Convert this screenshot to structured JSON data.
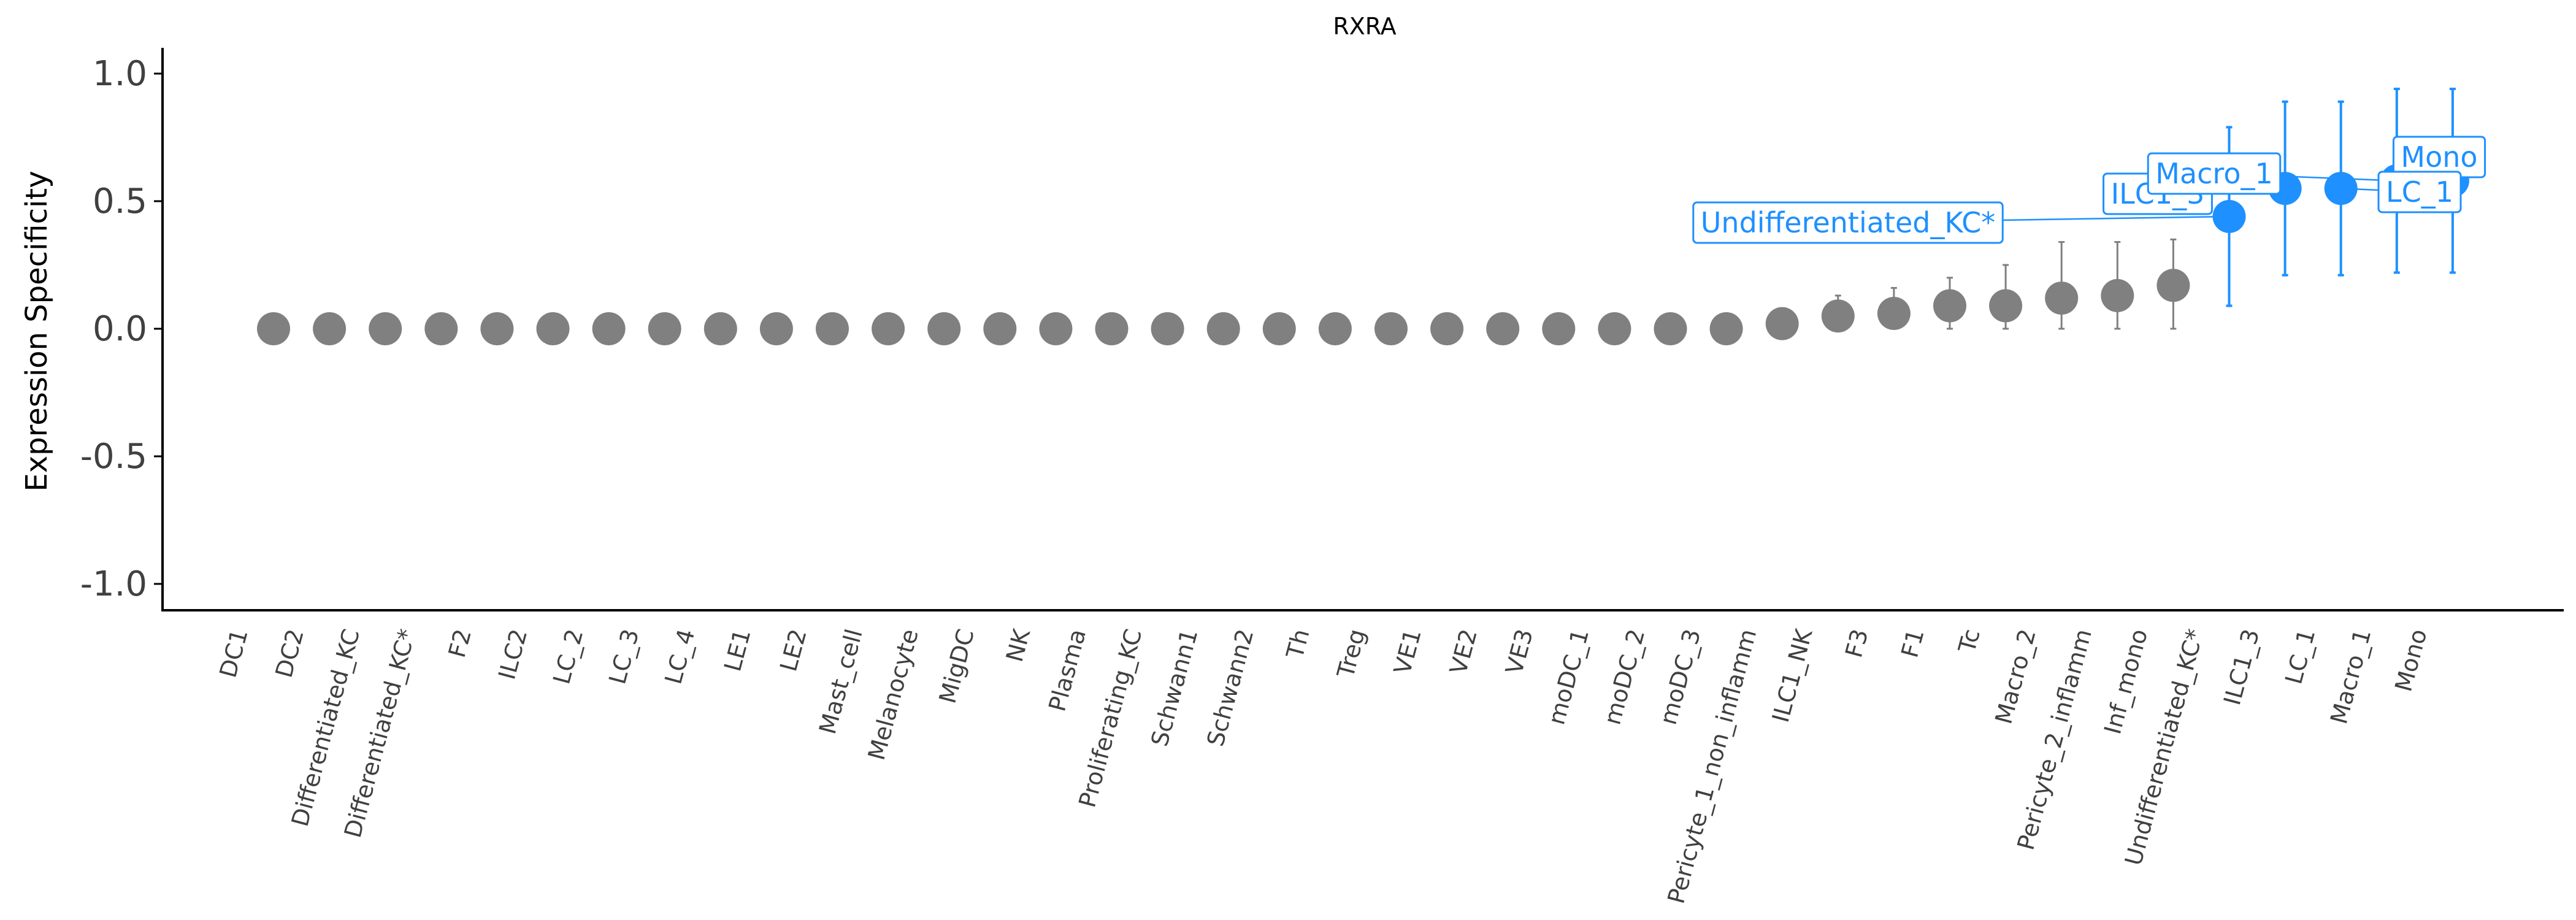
{
  "chart_data": {
    "type": "scatter",
    "title": "RXRA",
    "xlabel": "",
    "ylabel": "Expression Specificity",
    "ylim": [
      -1.1,
      1.1
    ],
    "yticks": [
      "-1.0",
      "-0.5",
      "0.0",
      "0.5",
      "1.0"
    ],
    "ytick_values": [
      -1.0,
      -0.5,
      0.0,
      0.5,
      1.0
    ],
    "grid": false,
    "colors": {
      "default": "#808080",
      "highlight": "#1e90ff"
    },
    "categories": [
      "DC1",
      "DC2",
      "Differentiated_KC",
      "Differentiated_KC*",
      "F2",
      "ILC2",
      "LC_2",
      "LC_3",
      "LC_4",
      "LE1",
      "LE2",
      "Mast_cell",
      "Melanocyte",
      "MigDC",
      "NK",
      "Plasma",
      "Proliferating_KC",
      "Schwann1",
      "Schwann2",
      "Th",
      "Treg",
      "VE1",
      "VE2",
      "VE3",
      "moDC_1",
      "moDC_2",
      "moDC_3",
      "Pericyte_1_non_inflamm",
      "ILC1_NK",
      "F3",
      "F1",
      "Tc",
      "Macro_2",
      "Pericyte_2_inflamm",
      "Inf_mono",
      "Undifferentiated_KC*",
      "ILC1_3",
      "LC_1",
      "Macro_1",
      "Mono"
    ],
    "points": [
      {
        "label": "DC1",
        "y": 0.0,
        "err": 0.0,
        "highlight": false
      },
      {
        "label": "DC2",
        "y": 0.0,
        "err": 0.0,
        "highlight": false
      },
      {
        "label": "Differentiated_KC",
        "y": 0.0,
        "err": 0.0,
        "highlight": false
      },
      {
        "label": "Differentiated_KC*",
        "y": 0.0,
        "err": 0.0,
        "highlight": false
      },
      {
        "label": "F2",
        "y": 0.0,
        "err": 0.0,
        "highlight": false
      },
      {
        "label": "ILC2",
        "y": 0.0,
        "err": 0.0,
        "highlight": false
      },
      {
        "label": "LC_2",
        "y": 0.0,
        "err": 0.0,
        "highlight": false
      },
      {
        "label": "LC_3",
        "y": 0.0,
        "err": 0.0,
        "highlight": false
      },
      {
        "label": "LC_4",
        "y": 0.0,
        "err": 0.0,
        "highlight": false
      },
      {
        "label": "LE1",
        "y": 0.0,
        "err": 0.0,
        "highlight": false
      },
      {
        "label": "LE2",
        "y": 0.0,
        "err": 0.0,
        "highlight": false
      },
      {
        "label": "Mast_cell",
        "y": 0.0,
        "err": 0.0,
        "highlight": false
      },
      {
        "label": "Melanocyte",
        "y": 0.0,
        "err": 0.0,
        "highlight": false
      },
      {
        "label": "MigDC",
        "y": 0.0,
        "err": 0.0,
        "highlight": false
      },
      {
        "label": "NK",
        "y": 0.0,
        "err": 0.0,
        "highlight": false
      },
      {
        "label": "Plasma",
        "y": 0.0,
        "err": 0.0,
        "highlight": false
      },
      {
        "label": "Proliferating_KC",
        "y": 0.0,
        "err": 0.0,
        "highlight": false
      },
      {
        "label": "Schwann1",
        "y": 0.0,
        "err": 0.0,
        "highlight": false
      },
      {
        "label": "Schwann2",
        "y": 0.0,
        "err": 0.0,
        "highlight": false
      },
      {
        "label": "Th",
        "y": 0.0,
        "err": 0.0,
        "highlight": false
      },
      {
        "label": "Treg",
        "y": 0.0,
        "err": 0.0,
        "highlight": false
      },
      {
        "label": "VE1",
        "y": 0.0,
        "err": 0.0,
        "highlight": false
      },
      {
        "label": "VE2",
        "y": 0.0,
        "err": 0.0,
        "highlight": false
      },
      {
        "label": "VE3",
        "y": 0.0,
        "err": 0.0,
        "highlight": false
      },
      {
        "label": "moDC_1",
        "y": 0.0,
        "err": 0.0,
        "highlight": false
      },
      {
        "label": "moDC_2",
        "y": 0.0,
        "err": 0.0,
        "highlight": false
      },
      {
        "label": "moDC_3",
        "y": 0.0,
        "err": 0.0,
        "highlight": false
      },
      {
        "label": "Pericyte_1_non_inflamm",
        "y": 0.02,
        "err": 0.0,
        "highlight": false
      },
      {
        "label": "ILC1_NK",
        "y": 0.05,
        "err": 0.08,
        "highlight": false
      },
      {
        "label": "F3",
        "y": 0.06,
        "err": 0.1,
        "highlight": false
      },
      {
        "label": "F1",
        "y": 0.09,
        "err": 0.11,
        "highlight": false
      },
      {
        "label": "Tc",
        "y": 0.09,
        "err": 0.16,
        "highlight": false
      },
      {
        "label": "Macro_2",
        "y": 0.12,
        "err": 0.22,
        "highlight": false
      },
      {
        "label": "Pericyte_2_inflamm",
        "y": 0.13,
        "err": 0.21,
        "highlight": false
      },
      {
        "label": "Inf_mono",
        "y": 0.17,
        "err": 0.18,
        "highlight": false
      },
      {
        "label": "Undifferentiated_KC*",
        "y": 0.44,
        "err": 0.35,
        "highlight": true
      },
      {
        "label": "ILC1_3",
        "y": 0.55,
        "err": 0.34,
        "highlight": true
      },
      {
        "label": "LC_1",
        "y": 0.55,
        "err": 0.34,
        "highlight": true
      },
      {
        "label": "Macro_1",
        "y": 0.58,
        "err": 0.36,
        "highlight": true
      },
      {
        "label": "Mono",
        "y": 0.58,
        "err": 0.36,
        "highlight": true
      }
    ],
    "annotations": [
      {
        "text": "Undifferentiated_KC*",
        "target": "Undifferentiated_KC*"
      },
      {
        "text": "ILC1_3",
        "target": "ILC1_3"
      },
      {
        "text": "Macro_1",
        "target": "Macro_1"
      },
      {
        "text": "Mono",
        "target": "Mono"
      },
      {
        "text": "LC_1",
        "target": "LC_1"
      }
    ]
  }
}
